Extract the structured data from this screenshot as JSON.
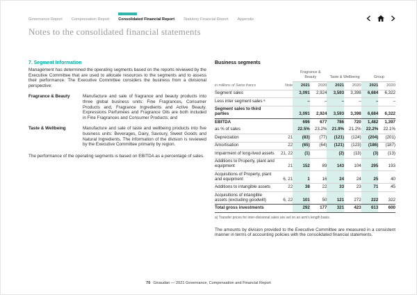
{
  "nav": {
    "items": [
      {
        "label": "Governance Report",
        "active": false
      },
      {
        "label": "Compensation Report",
        "active": false
      },
      {
        "label": "Consolidated Financial Report",
        "active": true
      },
      {
        "label": "Statutory Financial Report",
        "active": false
      },
      {
        "label": "Appendix",
        "active": false
      }
    ],
    "icons": [
      "chevron-left-icon",
      "home-icon",
      "chevron-right-icon"
    ]
  },
  "page_title": "Notes to the consolidated financial statements",
  "left": {
    "section_heading": "7. Segment Information",
    "intro": "Management has determined the operating segments based on the reports reviewed by the Executive Committee that are used to allocate resources to the segments and to assess their performance. The Executive Committee considers the business from a divisional perspective:",
    "definitions": [
      {
        "term": "Fragrance & Beauty",
        "description": "Manufacture and sale of fragrance and beauty products into three global business units: Fine Fragrances, Consumer Products and, Fragrance Ingredients and Active Beauty. Expressions Parfumées and Fragrance Oils are both included in Fine Fragrances and Consumer Products; and"
      },
      {
        "term": "Taste & Wellbeing",
        "description": "Manufacture and sale of taste and wellbeing products into five business units: Beverages, Dairy, Savoury, Sweet Goods and Natural Ingredients. The information of the division is reviewed by the Executive Committee primarily by region."
      }
    ],
    "closing": "The performance of the operating segments is based on EBITDA as a percentage of sales."
  },
  "right": {
    "table_title": "Business segments",
    "table": {
      "unit_label": "in millions of Swiss francs",
      "note_label": "Note",
      "groups": [
        "Fragrance & Beauty",
        "Taste & Wellbeing",
        "Group"
      ],
      "years": [
        "2021",
        "2020"
      ],
      "rows": [
        {
          "label": "Segment sales",
          "note": "",
          "values": [
            "3,091",
            "2,924",
            "3,593",
            "3,398",
            "6,684",
            "6,322"
          ],
          "bold": false,
          "border": "light"
        },
        {
          "label": "Less inter segment sales ᵃ",
          "note": "",
          "values": [
            "–",
            "–",
            "–",
            "–",
            "–",
            "–"
          ],
          "bold": false,
          "border": "light"
        },
        {
          "label": "Segment sales to third parties",
          "note": "",
          "values": [
            "3,091",
            "2,924",
            "3,593",
            "3,398",
            "6,684",
            "6,322"
          ],
          "bold": true,
          "border": "light"
        },
        {
          "label": "EBITDA",
          "note": "",
          "values": [
            "696",
            "677",
            "786",
            "720",
            "1,482",
            "1,397"
          ],
          "bold": true,
          "border": "dark"
        },
        {
          "label": "as % of sales",
          "note": "",
          "values": [
            "22.5%",
            "23.2%",
            "21.9%",
            "21.2%",
            "22.2%",
            "22.1%"
          ],
          "bold": false,
          "border": "none"
        },
        {
          "label": "Depreciation",
          "note": "21",
          "values": [
            "(83)",
            "(77)",
            "(121)",
            "(124)",
            "(204)",
            "(201)"
          ],
          "bold": false,
          "border": "light"
        },
        {
          "label": "Amortisation",
          "note": "22",
          "values": [
            "(65)",
            "(64)",
            "(121)",
            "(123)",
            "(186)",
            "(187)"
          ],
          "bold": false,
          "border": "light"
        },
        {
          "label": "Impairment of long-lived assets",
          "note": "21, 22",
          "values": [
            "(1)",
            "",
            "(2)",
            "(13)",
            "(3)",
            "(13)"
          ],
          "bold": false,
          "border": "light"
        },
        {
          "label": "Additions to Property, plant and equipment",
          "note": "21",
          "values": [
            "152",
            "89",
            "143",
            "104",
            "295",
            "193"
          ],
          "bold": false,
          "border": "light"
        },
        {
          "label": "Acquisitions of Property, plant and equipment",
          "note": "6, 21",
          "values": [
            "1",
            "16",
            "24",
            "24",
            "25",
            "40"
          ],
          "bold": false,
          "border": "light"
        },
        {
          "label": "Additions to intangible assets",
          "note": "22",
          "values": [
            "38",
            "22",
            "33",
            "23",
            "71",
            "45"
          ],
          "bold": false,
          "border": "light"
        },
        {
          "label": "Acquisitions of intangible assets (excluding goodwill)",
          "note": "6, 22",
          "values": [
            "101",
            "50",
            "121",
            "272",
            "222",
            "322"
          ],
          "bold": false,
          "border": "light"
        },
        {
          "label": "Total gross investments",
          "note": "",
          "values": [
            "292",
            "177",
            "321",
            "423",
            "613",
            "600"
          ],
          "bold": true,
          "border": "dark",
          "border_bottom": "dark"
        }
      ],
      "footnote": "a) Transfer prices for inter-divisional sales are set on an arm’s length basis."
    },
    "closing": "The amounts by division provided to the Executive Committee are measured in a consistent manner in terms of accounting policies with the consolidated financial statements."
  },
  "footer": {
    "page_number": "70",
    "text": "Givaudan — 2021 Governance, Compensation and Financial Report"
  },
  "colors": {
    "accent_teal": "#00A79B",
    "nav_bar_teal": "#2FB5AB",
    "column_highlight": "#D9EFEC"
  }
}
